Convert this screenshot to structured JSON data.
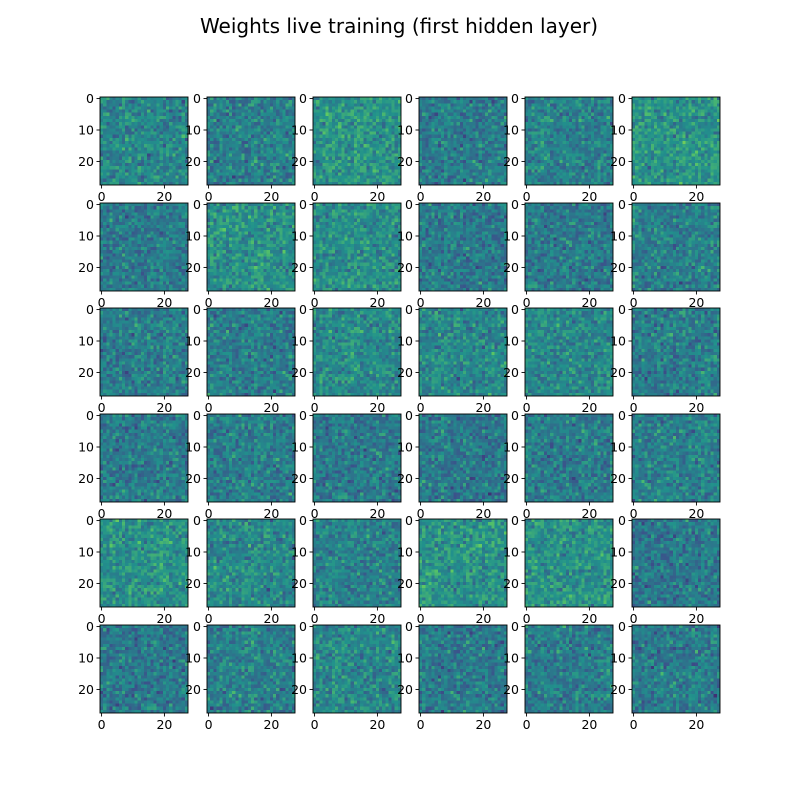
{
  "figure": {
    "title": "Weights live training (first hidden layer)"
  },
  "chart_data": {
    "type": "heatmap",
    "title": "Weights live training (first hidden layer)",
    "layout": "6 x 6 grid of image panels",
    "rows": 6,
    "cols": 6,
    "panel_count": 36,
    "image_size": [
      28,
      28
    ],
    "colormap": "viridis",
    "colormap_stops": [
      "#440154",
      "#3b528b",
      "#21918c",
      "#5ec962",
      "#fde725"
    ],
    "x_ticks": [
      0,
      20
    ],
    "y_ticks": [
      0,
      10,
      20
    ],
    "xlim": [
      -0.5,
      27.5
    ],
    "ylim": [
      27.5,
      -0.5
    ],
    "note_values": "random per-pixel weights rendered as viridis noise"
  }
}
